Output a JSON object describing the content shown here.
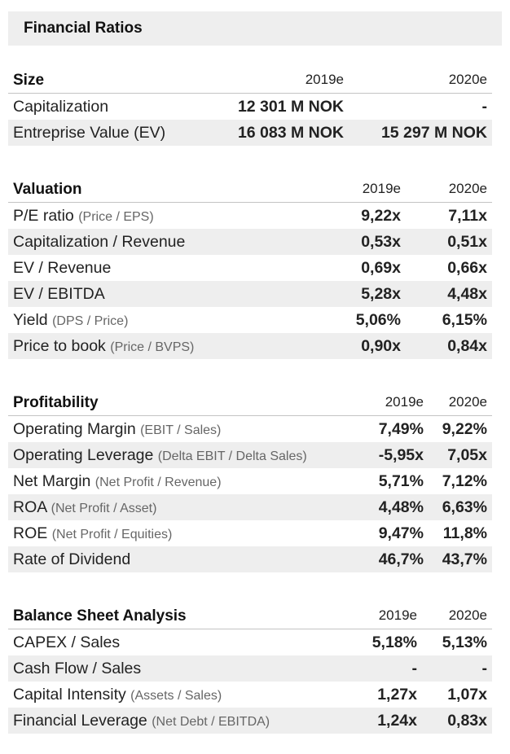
{
  "page_title": "Financial Ratios",
  "sections": [
    {
      "title": "Size",
      "columns": [
        "2019e",
        "2020e"
      ],
      "rows": [
        {
          "label": "Capitalization",
          "note": "",
          "values": [
            "12 301 M NOK",
            "-"
          ]
        },
        {
          "label": "Entreprise Value (EV)",
          "note": "",
          "values": [
            "16 083 M NOK",
            "15 297 M NOK"
          ]
        }
      ]
    },
    {
      "title": "Valuation",
      "columns": [
        "2019e",
        "2020e"
      ],
      "rows": [
        {
          "label": "P/E ratio",
          "note": "(Price / EPS)",
          "values": [
            "9,22x",
            "7,11x"
          ]
        },
        {
          "label": "Capitalization / Revenue",
          "note": "",
          "values": [
            "0,53x",
            "0,51x"
          ]
        },
        {
          "label": "EV / Revenue",
          "note": "",
          "values": [
            "0,69x",
            "0,66x"
          ]
        },
        {
          "label": "EV / EBITDA",
          "note": "",
          "values": [
            "5,28x",
            "4,48x"
          ]
        },
        {
          "label": "Yield",
          "note": "(DPS / Price)",
          "values": [
            "5,06%",
            "6,15%"
          ]
        },
        {
          "label": "Price to book",
          "note": "(Price / BVPS)",
          "values": [
            "0,90x",
            "0,84x"
          ]
        }
      ]
    },
    {
      "title": "Profitability",
      "columns": [
        "2019e",
        "2020e"
      ],
      "rows": [
        {
          "label": "Operating Margin",
          "note": "(EBIT / Sales)",
          "values": [
            "7,49%",
            "9,22%"
          ]
        },
        {
          "label": "Operating Leverage",
          "note": "(Delta EBIT / Delta Sales)",
          "values": [
            "-5,95x",
            "7,05x"
          ]
        },
        {
          "label": "Net Margin",
          "note": "(Net Profit / Revenue)",
          "values": [
            "5,71%",
            "7,12%"
          ]
        },
        {
          "label": "ROA",
          "note": "(Net Profit / Asset)",
          "values": [
            "4,48%",
            "6,63%"
          ]
        },
        {
          "label": "ROE",
          "note": "(Net Profit / Equities)",
          "values": [
            "9,47%",
            "11,8%"
          ]
        },
        {
          "label": "Rate of Dividend",
          "note": "",
          "values": [
            "46,7%",
            "43,7%"
          ]
        }
      ]
    },
    {
      "title": "Balance Sheet Analysis",
      "columns": [
        "2019e",
        "2020e"
      ],
      "rows": [
        {
          "label": "CAPEX / Sales",
          "note": "",
          "values": [
            "5,18%",
            "5,13%"
          ]
        },
        {
          "label": "Cash Flow / Sales",
          "note": "",
          "values": [
            "-",
            "-"
          ]
        },
        {
          "label": "Capital Intensity",
          "note": "(Assets / Sales)",
          "values": [
            "1,27x",
            "1,07x"
          ]
        },
        {
          "label": "Financial Leverage",
          "note": "(Net Debt / EBITDA)",
          "values": [
            "1,24x",
            "0,83x"
          ]
        }
      ]
    }
  ],
  "colors": {
    "shade": "#eeeeee",
    "rule": "#c4c4c4",
    "note_text": "#666666"
  }
}
